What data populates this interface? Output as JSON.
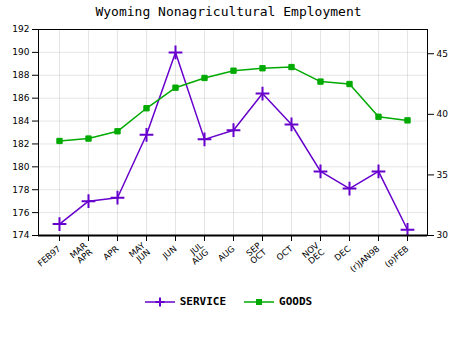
{
  "chart_data": {
    "type": "line",
    "title": "Wyoming Nonagricultural Employment",
    "categories": [
      "FEB97",
      "MAR\nAPR",
      "APR",
      "MAY\nJUN",
      "JUN",
      "JUL\nAUG",
      "AUG",
      "SEP\nOCT",
      "OCT",
      "NOV\nDEC",
      "DEC",
      "(r)JAN98",
      "(p)FEB"
    ],
    "series": [
      {
        "name": "SERVICE",
        "color": "#6600cc",
        "marker": "plus",
        "values": [
          175.0,
          177.0,
          177.3,
          182.8,
          190.0,
          182.4,
          183.2,
          186.4,
          183.7,
          179.6,
          178.1,
          179.6,
          174.5
        ]
      },
      {
        "name": "GOODS",
        "color": "#00aa00",
        "marker": "square",
        "axis": "y2",
        "values": [
          37.8,
          38.0,
          38.6,
          40.5,
          42.2,
          43.0,
          43.6,
          43.8,
          43.9,
          42.7,
          42.5,
          39.8,
          39.5
        ]
      }
    ],
    "ylim": [
      174,
      192
    ],
    "yticks": [
      174,
      176,
      178,
      180,
      182,
      184,
      186,
      188,
      190,
      192
    ],
    "y2lim": [
      30,
      47
    ],
    "y2ticks": [
      30,
      35,
      40,
      45
    ],
    "grid": true,
    "legend": "lower center"
  }
}
